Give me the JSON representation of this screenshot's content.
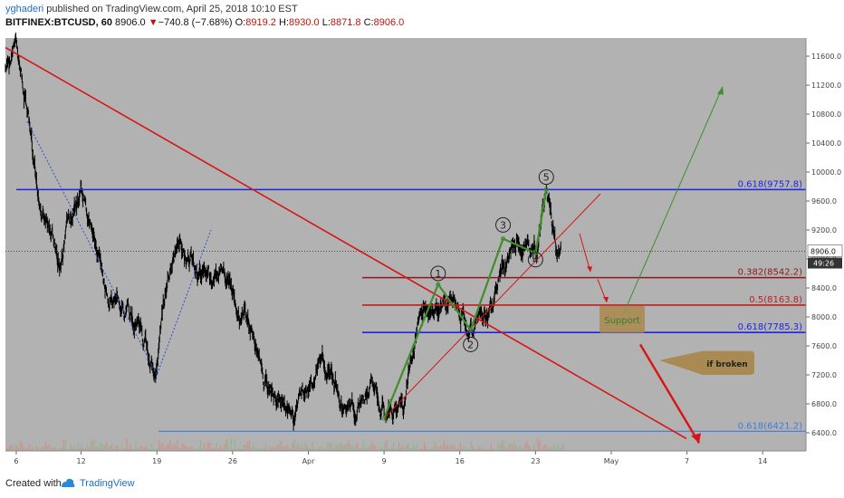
{
  "header": {
    "author": "yghaderi",
    "published_text": " published on TradingView.com, April 25, 2018 10:10 EST",
    "symbol": "BITFINEX:BTCUSD, 60",
    "last": "8906.0",
    "change_arrow": "▼",
    "change": "−740.8 (−7.68%)",
    "o_label": "O:",
    "o_value": "8919.2",
    "h_label": "H:",
    "h_value": "8930.0",
    "l_label": "L:",
    "l_value": "8871.8",
    "c_label": "C:",
    "c_value": "8906.0"
  },
  "footer": {
    "created_with": "Created with",
    "brand": "TradingView"
  },
  "colors": {
    "plot_bg": "#b2b2b2",
    "axis_bg": "#ffffff",
    "candles": "#000000",
    "fib_blue": "#1d24e6",
    "fib_dark_red": "#8b1a1a",
    "fib_red": "#c41c1c",
    "fib_light_blue": "#3d7be0",
    "trend_red": "#d81414",
    "wave_green": "#3e8f2a",
    "projection_green": "#3c8f2c",
    "support_box": "#a88a52",
    "support_text": "#3a7d2f",
    "callout_box": "#a88a52"
  },
  "chart_data": {
    "type": "line",
    "symbol": "BITFINEX:BTCUSD",
    "interval": "60",
    "x_axis": {
      "type": "date",
      "range": [
        "2018-03-05",
        "2018-05-18"
      ],
      "tick_labels": [
        "6",
        "12",
        "19",
        "26",
        "Apr",
        "9",
        "16",
        "23",
        "May",
        "7",
        "14"
      ],
      "tick_dates": [
        "2018-03-06",
        "2018-03-12",
        "2018-03-19",
        "2018-03-26",
        "2018-04-02",
        "2018-04-09",
        "2018-04-16",
        "2018-04-23",
        "2018-04-30",
        "2018-05-07",
        "2018-05-14"
      ]
    },
    "y_axis": {
      "range": [
        6150,
        11850
      ],
      "tick_labels": [
        "6400.0",
        "6800.0",
        "7200.0",
        "7600.0",
        "8000.0",
        "8400.0",
        "8800.0",
        "9200.0",
        "9600.0",
        "10000.0",
        "10400.0",
        "10800.0",
        "11200.0",
        "11600.0"
      ],
      "tick_values": [
        6400,
        6800,
        7200,
        7600,
        8000,
        8400,
        8800,
        9200,
        9600,
        10000,
        10400,
        10800,
        11200,
        11600
      ]
    },
    "price_path": {
      "x": [
        "2018-03-05",
        "2018-03-06",
        "2018-03-07",
        "2018-03-08",
        "2018-03-09",
        "2018-03-10",
        "2018-03-11",
        "2018-03-12",
        "2018-03-13",
        "2018-03-14",
        "2018-03-15",
        "2018-03-16",
        "2018-03-17",
        "2018-03-18",
        "2018-03-19",
        "2018-03-20",
        "2018-03-21",
        "2018-03-22",
        "2018-03-23",
        "2018-03-24",
        "2018-03-25",
        "2018-03-26",
        "2018-03-27",
        "2018-03-28",
        "2018-03-29",
        "2018-03-30",
        "2018-03-31",
        "2018-04-01",
        "2018-04-02",
        "2018-04-03",
        "2018-04-04",
        "2018-04-05",
        "2018-04-06",
        "2018-04-07",
        "2018-04-08",
        "2018-04-09",
        "2018-04-10",
        "2018-04-11",
        "2018-04-12",
        "2018-04-13",
        "2018-04-14",
        "2018-04-15",
        "2018-04-16",
        "2018-04-17",
        "2018-04-18",
        "2018-04-19",
        "2018-04-20",
        "2018-04-21",
        "2018-04-22",
        "2018-04-23",
        "2018-04-24",
        "2018-04-25"
      ],
      "y": [
        11500,
        11700,
        10800,
        9800,
        9200,
        8700,
        9400,
        9600,
        9300,
        8600,
        8300,
        8200,
        7900,
        7500,
        7300,
        8500,
        8900,
        8800,
        8600,
        8500,
        8500,
        8200,
        7900,
        7800,
        7100,
        6900,
        6800,
        6650,
        7000,
        7300,
        7200,
        6750,
        6600,
        6800,
        7000,
        6700,
        6650,
        6850,
        7850,
        8100,
        8200,
        8350,
        8100,
        7900,
        8100,
        8200,
        8700,
        8900,
        8900,
        9000,
        9700,
        8900
      ]
    },
    "fib_levels": [
      {
        "label": "0.618(9757.8)",
        "value": 9757.8
      },
      {
        "label": "0.382(8542.2)",
        "value": 8542.2
      },
      {
        "label": "0.5(8163.8)",
        "value": 8163.8
      },
      {
        "label": "0.618(7785.3)",
        "value": 7785.3
      },
      {
        "label": "0.618(6421.2)",
        "value": 6421.2
      }
    ],
    "wave_labels": [
      {
        "label": "1",
        "x": "2018-04-14",
        "y": 8600
      },
      {
        "label": "2",
        "x": "2018-04-17",
        "y": 7620
      },
      {
        "label": "3",
        "x": "2018-04-20",
        "y": 9270
      },
      {
        "label": "4",
        "x": "2018-04-23",
        "y": 8790
      },
      {
        "label": "5",
        "x": "2018-04-24",
        "y": 9930
      }
    ],
    "elliott_wave_path": {
      "x": [
        "2018-04-09",
        "2018-04-14",
        "2018-04-17",
        "2018-04-20",
        "2018-04-23",
        "2018-04-24"
      ],
      "y": [
        6600,
        8450,
        7820,
        9080,
        8880,
        9760
      ]
    },
    "current_price": {
      "label": "8906.0",
      "value": 8906.0
    },
    "countdown": "49:26",
    "annotations": {
      "support_label": "Support",
      "callout_label": "if broken"
    }
  }
}
